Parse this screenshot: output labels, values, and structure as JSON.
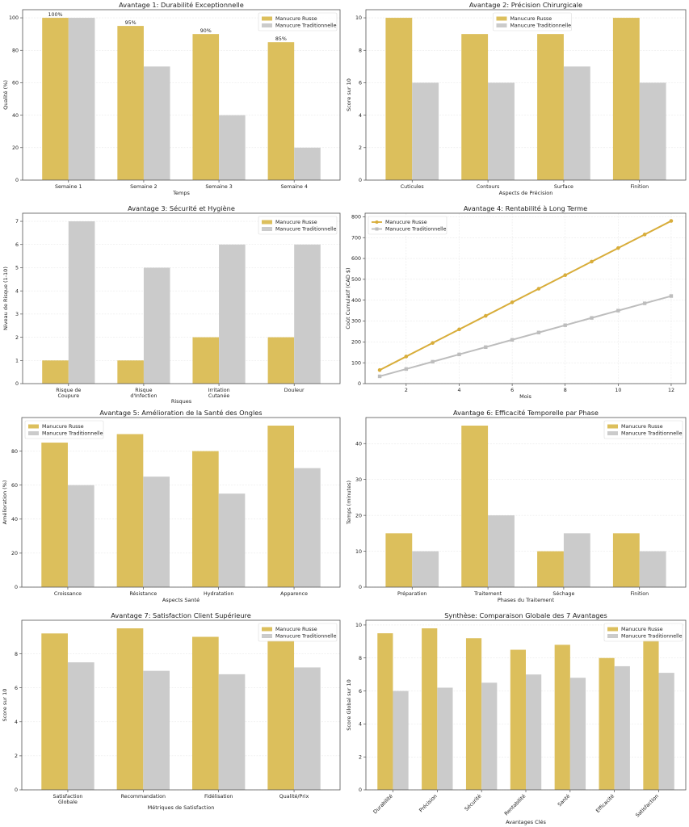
{
  "colors": {
    "russe": "#dcbf5c",
    "traditionnelle": "#cbcbcb",
    "russe_line": "#d8ad3a",
    "trad_line": "#bdbdbd"
  },
  "legend": {
    "russe": "Manucure Russe",
    "traditionnelle": "Manucure Traditionnelle"
  },
  "chart_data": [
    {
      "type": "bar",
      "title": "Avantage 1: Durabilité Exceptionnelle",
      "xlabel": "Temps",
      "ylabel": "Qualité (%)",
      "categories": [
        "Semaine 1",
        "Semaine 2",
        "Semaine 3",
        "Semaine 4"
      ],
      "series": [
        {
          "name": "Manucure Russe",
          "values": [
            100,
            95,
            90,
            85
          ]
        },
        {
          "name": "Manucure Traditionnelle",
          "values": [
            100,
            70,
            40,
            20
          ]
        }
      ],
      "data_labels": [
        "100%",
        "95%",
        "90%",
        "85%"
      ],
      "ylim": [
        0,
        105
      ],
      "yticks": [
        0,
        20,
        40,
        60,
        80,
        100
      ],
      "legend_position": "top-right",
      "grid": true
    },
    {
      "type": "bar",
      "title": "Avantage 2: Précision Chirurgicale",
      "xlabel": "Aspects de Précision",
      "ylabel": "Score sur 10",
      "categories": [
        "Cuticules",
        "Contours",
        "Surface",
        "Finition"
      ],
      "series": [
        {
          "name": "Manucure Russe",
          "values": [
            10,
            9,
            9,
            10
          ]
        },
        {
          "name": "Manucure Traditionnelle",
          "values": [
            6,
            6,
            7,
            6
          ]
        }
      ],
      "ylim": [
        0,
        10.5
      ],
      "yticks": [
        0,
        2,
        4,
        6,
        8,
        10
      ],
      "legend_position": "top-center",
      "grid": true
    },
    {
      "type": "bar",
      "title": "Avantage 3: Sécurité et Hygiène",
      "xlabel": "Risques",
      "ylabel": "Niveau de Risque (1-10)",
      "categories": [
        [
          "Risque de",
          "Coupure"
        ],
        [
          "Risque",
          "d'Infection"
        ],
        [
          "Irritation",
          "Cutanée"
        ],
        [
          "Douleur"
        ]
      ],
      "series": [
        {
          "name": "Manucure Russe",
          "values": [
            1,
            1,
            2,
            2
          ]
        },
        {
          "name": "Manucure Traditionnelle",
          "values": [
            7,
            5,
            6,
            6
          ]
        }
      ],
      "ylim": [
        0,
        7.35
      ],
      "yticks": [
        0,
        1,
        2,
        3,
        4,
        5,
        6,
        7
      ],
      "legend_position": "top-right",
      "grid": true
    },
    {
      "type": "line",
      "title": "Avantage 4: Rentabilité à Long Terme",
      "xlabel": "Mois",
      "ylabel": "Coût Cumulatif (CAD $)",
      "x": [
        1,
        2,
        3,
        4,
        5,
        6,
        7,
        8,
        9,
        10,
        11,
        12
      ],
      "series": [
        {
          "name": "Manucure Russe",
          "marker": "circle",
          "values": [
            65,
            130,
            195,
            260,
            325,
            390,
            455,
            520,
            585,
            650,
            715,
            780
          ]
        },
        {
          "name": "Manucure Traditionnelle",
          "marker": "square",
          "values": [
            35,
            70,
            105,
            140,
            175,
            210,
            245,
            280,
            315,
            350,
            385,
            420
          ]
        }
      ],
      "xlim": [
        0.45,
        12.55
      ],
      "ylim": [
        0,
        817
      ],
      "xticks": [
        2,
        4,
        6,
        8,
        10,
        12
      ],
      "yticks": [
        0,
        100,
        200,
        300,
        400,
        500,
        600,
        700,
        800
      ],
      "legend_position": "top-left",
      "grid": true
    },
    {
      "type": "bar",
      "title": "Avantage 5: Amélioration de la Santé des Ongles",
      "xlabel": "Aspects Santé",
      "ylabel": "Amélioration (%)",
      "categories": [
        "Croissance",
        "Résistance",
        "Hydratation",
        "Apparence"
      ],
      "series": [
        {
          "name": "Manucure Russe",
          "values": [
            85,
            90,
            80,
            95
          ]
        },
        {
          "name": "Manucure Traditionnelle",
          "values": [
            60,
            65,
            55,
            70
          ]
        }
      ],
      "ylim": [
        0,
        99.75
      ],
      "yticks": [
        0,
        20,
        40,
        60,
        80
      ],
      "legend_position": "top-left",
      "grid": true
    },
    {
      "type": "bar",
      "title": "Avantage 6: Efficacité Temporelle par Phase",
      "xlabel": "Phases du Traitement",
      "ylabel": "Temps (minutes)",
      "categories": [
        "Préparation",
        "Traitement",
        "Séchage",
        "Finition"
      ],
      "series": [
        {
          "name": "Manucure Russe",
          "values": [
            15,
            45,
            10,
            15
          ]
        },
        {
          "name": "Manucure Traditionnelle",
          "values": [
            10,
            20,
            15,
            10
          ]
        }
      ],
      "ylim": [
        0,
        47.25
      ],
      "yticks": [
        0,
        10,
        20,
        30,
        40
      ],
      "legend_position": "top-right",
      "grid": true
    },
    {
      "type": "bar",
      "title": "Avantage 7: Satisfaction Client Supérieure",
      "xlabel": "Métriques de Satisfaction",
      "ylabel": "Score sur 10",
      "categories": [
        [
          "Satisfaction",
          "Globale"
        ],
        [
          "Recommandation"
        ],
        [
          "Fidélisation"
        ],
        [
          "Qualité/Prix"
        ]
      ],
      "series": [
        {
          "name": "Manucure Russe",
          "values": [
            9.2,
            9.5,
            9.0,
            8.8
          ]
        },
        {
          "name": "Manucure Traditionnelle",
          "values": [
            7.5,
            7.0,
            6.8,
            7.2
          ]
        }
      ],
      "ylim": [
        0,
        9.975
      ],
      "yticks": [
        0,
        2,
        4,
        6,
        8
      ],
      "legend_position": "top-right",
      "grid": true
    },
    {
      "type": "bar",
      "title": "Synthèse: Comparaison Globale des 7 Avantages",
      "xlabel": "Avantages Clés",
      "ylabel": "Score Global sur 10",
      "categories": [
        "Durabilité",
        "Précision",
        "Sécurité",
        "Rentabilité",
        "Santé",
        "Efficacité",
        "Satisfaction"
      ],
      "rotate_xticks": true,
      "series": [
        {
          "name": "Manucure Russe",
          "values": [
            9.5,
            9.8,
            9.2,
            8.5,
            8.8,
            8.0,
            9.1
          ]
        },
        {
          "name": "Manucure Traditionnelle",
          "values": [
            6.0,
            6.2,
            6.5,
            7.0,
            6.8,
            7.5,
            7.1
          ]
        }
      ],
      "ylim": [
        0,
        10.29
      ],
      "yticks": [
        0,
        2,
        4,
        6,
        8,
        10
      ],
      "legend_position": "top-right",
      "grid": true
    }
  ]
}
